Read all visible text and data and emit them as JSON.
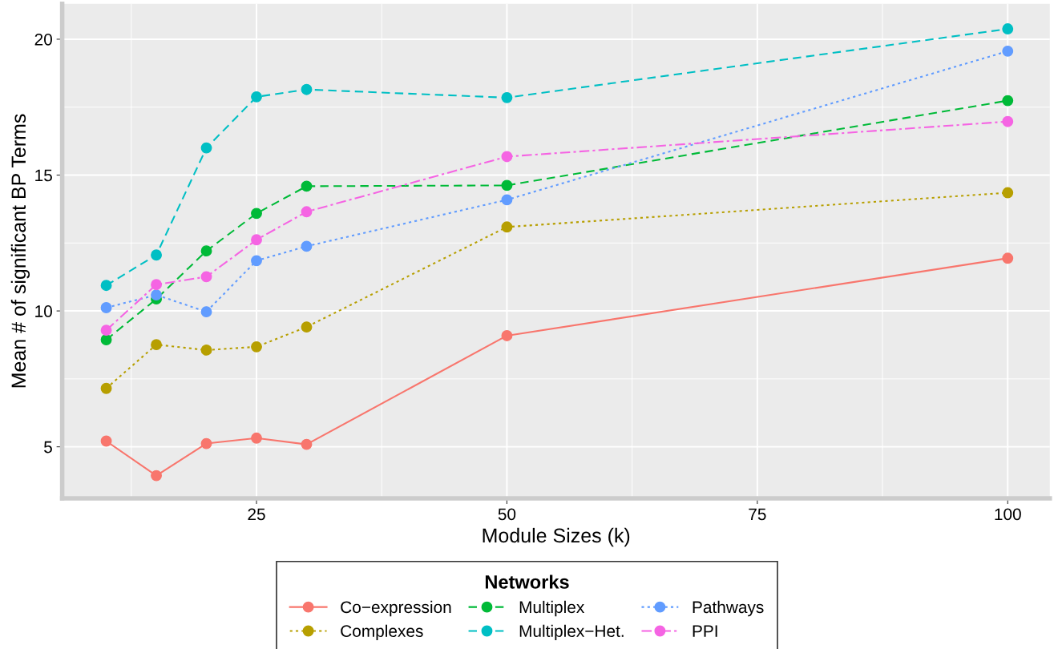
{
  "chart_data": {
    "type": "line",
    "xlabel": "Module Sizes (k)",
    "ylabel": "Mean # of significant BP Terms",
    "legend_title": "Networks",
    "x": [
      10,
      15,
      20,
      25,
      30,
      50,
      100
    ],
    "series": [
      {
        "name": "Co−expression",
        "color": "#f8766d",
        "line_style": "solid",
        "values": [
          5.21,
          3.94,
          5.12,
          5.32,
          5.09,
          9.09,
          11.94
        ]
      },
      {
        "name": "Complexes",
        "color": "#b79f00",
        "line_style": "dotted",
        "values": [
          7.15,
          8.76,
          8.56,
          8.68,
          9.41,
          13.09,
          14.35
        ]
      },
      {
        "name": "Multiplex",
        "color": "#00ba38",
        "line_style": "dashed",
        "values": [
          8.94,
          10.44,
          12.21,
          13.59,
          14.59,
          14.62,
          17.74
        ]
      },
      {
        "name": "Multiplex−Het.",
        "color": "#00bfc4",
        "line_style": "dashed",
        "values": [
          10.94,
          12.06,
          16.0,
          17.88,
          18.15,
          17.85,
          20.38
        ]
      },
      {
        "name": "Pathways",
        "color": "#619cff",
        "line_style": "dotted",
        "values": [
          10.12,
          10.59,
          9.97,
          11.85,
          12.38,
          14.09,
          19.56
        ]
      },
      {
        "name": "PPI",
        "color": "#f564e3",
        "line_style": "dashdot",
        "values": [
          9.29,
          10.97,
          11.26,
          12.62,
          13.65,
          15.68,
          16.97
        ]
      }
    ],
    "xlim": [
      5.6,
      104.2
    ],
    "ylim": [
      3.1,
      21.3
    ],
    "xticks": [
      25,
      50,
      75,
      100
    ],
    "yticks": [
      5,
      10,
      15,
      20
    ],
    "grid": true,
    "legend": "bottom",
    "marker": "circle"
  }
}
